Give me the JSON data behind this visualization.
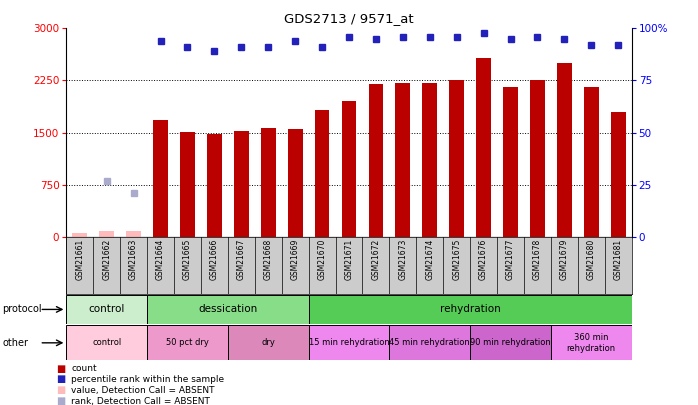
{
  "title": "GDS2713 / 9571_at",
  "samples": [
    "GSM21661",
    "GSM21662",
    "GSM21663",
    "GSM21664",
    "GSM21665",
    "GSM21666",
    "GSM21667",
    "GSM21668",
    "GSM21669",
    "GSM21670",
    "GSM21671",
    "GSM21672",
    "GSM21673",
    "GSM21674",
    "GSM21675",
    "GSM21676",
    "GSM21677",
    "GSM21678",
    "GSM21679",
    "GSM21680",
    "GSM21681"
  ],
  "count_values": [
    50,
    80,
    90,
    1680,
    1510,
    1480,
    1520,
    1570,
    1550,
    1820,
    1960,
    2200,
    2210,
    2210,
    2250,
    2570,
    2160,
    2250,
    2500,
    2150,
    1790
  ],
  "percentile_rank": [
    null,
    null,
    null,
    94,
    91,
    89,
    91,
    91,
    94,
    91,
    96,
    95,
    96,
    96,
    96,
    98,
    95,
    96,
    95,
    92,
    92
  ],
  "absent_count": [
    50,
    80,
    90,
    null,
    null,
    null,
    null,
    null,
    null,
    null,
    null,
    null,
    null,
    null,
    null,
    null,
    null,
    null,
    null,
    null,
    null
  ],
  "absent_rank": [
    null,
    27,
    21,
    null,
    null,
    null,
    null,
    null,
    null,
    null,
    null,
    null,
    null,
    null,
    null,
    null,
    null,
    null,
    null,
    null,
    null
  ],
  "bar_color": "#bb0000",
  "absent_bar_color": "#ffbbbb",
  "blue_color": "#2222bb",
  "absent_rank_color": "#aaaacc",
  "left_ylim": [
    0,
    3000
  ],
  "right_ylim": [
    0,
    100
  ],
  "left_yticks": [
    0,
    750,
    1500,
    2250,
    3000
  ],
  "right_yticks": [
    0,
    25,
    50,
    75,
    100
  ],
  "right_yticklabels": [
    "0",
    "25",
    "50",
    "75",
    "100%"
  ],
  "protocol_groups": [
    {
      "label": "control",
      "start": 0,
      "end": 3,
      "color": "#cceecc"
    },
    {
      "label": "dessication",
      "start": 3,
      "end": 9,
      "color": "#88dd88"
    },
    {
      "label": "rehydration",
      "start": 9,
      "end": 21,
      "color": "#55cc55"
    }
  ],
  "other_groups": [
    {
      "label": "control",
      "start": 0,
      "end": 3,
      "color": "#ffccdd"
    },
    {
      "label": "50 pct dry",
      "start": 3,
      "end": 6,
      "color": "#ee99cc"
    },
    {
      "label": "dry",
      "start": 6,
      "end": 9,
      "color": "#dd88bb"
    },
    {
      "label": "15 min rehydration",
      "start": 9,
      "end": 12,
      "color": "#ee88ee"
    },
    {
      "label": "45 min rehydration",
      "start": 12,
      "end": 15,
      "color": "#dd77dd"
    },
    {
      "label": "90 min rehydration",
      "start": 15,
      "end": 18,
      "color": "#cc66cc"
    },
    {
      "label": "360 min\nrehydration",
      "start": 18,
      "end": 21,
      "color": "#ee88ee"
    }
  ],
  "legend_items": [
    {
      "label": "count",
      "color": "#bb0000"
    },
    {
      "label": "percentile rank within the sample",
      "color": "#2222bb"
    },
    {
      "label": "value, Detection Call = ABSENT",
      "color": "#ffbbbb"
    },
    {
      "label": "rank, Detection Call = ABSENT",
      "color": "#aaaacc"
    }
  ]
}
